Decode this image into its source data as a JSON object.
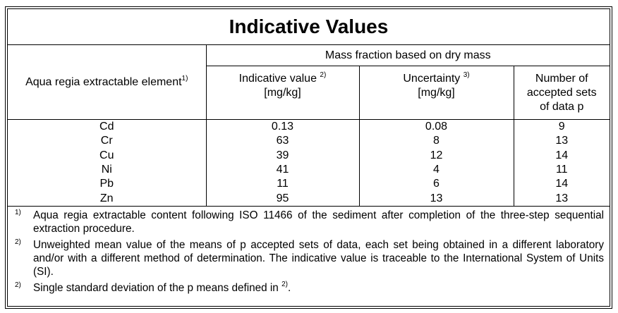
{
  "title": "Indicative Values",
  "headers": {
    "element": "Aqua regia extractable element",
    "element_note": "1)",
    "group": "Mass fraction based on dry mass",
    "value": "Indicative value",
    "value_note": "2)",
    "value_unit": "[mg/kg]",
    "uncertainty": "Uncertainty",
    "uncertainty_note": "3)",
    "uncertainty_unit": "[mg/kg]",
    "count": "Number of accepted sets of data p"
  },
  "rows": [
    {
      "element": "Cd",
      "value": "0.13",
      "uncertainty": "0.08",
      "count": "9"
    },
    {
      "element": "Cr",
      "value": "63",
      "uncertainty": "8",
      "count": "13"
    },
    {
      "element": "Cu",
      "value": "39",
      "uncertainty": "12",
      "count": "14"
    },
    {
      "element": "Ni",
      "value": "41",
      "uncertainty": "4",
      "count": "11"
    },
    {
      "element": "Pb",
      "value": "11",
      "uncertainty": "6",
      "count": "14"
    },
    {
      "element": "Zn",
      "value": "95",
      "uncertainty": "13",
      "count": "13"
    }
  ],
  "footnotes": [
    {
      "mark": "1)",
      "text": "Aqua regia extractable content following ISO 11466 of the sediment after completion of the three-step sequential extraction procedure."
    },
    {
      "mark": "2)",
      "text": "Unweighted mean value of the means of p accepted sets of data, each set being obtained in a different laboratory and/or with a different method of determination. The indicative value is traceable to the International System of Units (SI)."
    },
    {
      "mark": "2)",
      "text": "Single standard deviation of the p means defined in ",
      "ref": "2)",
      "end": "."
    }
  ]
}
